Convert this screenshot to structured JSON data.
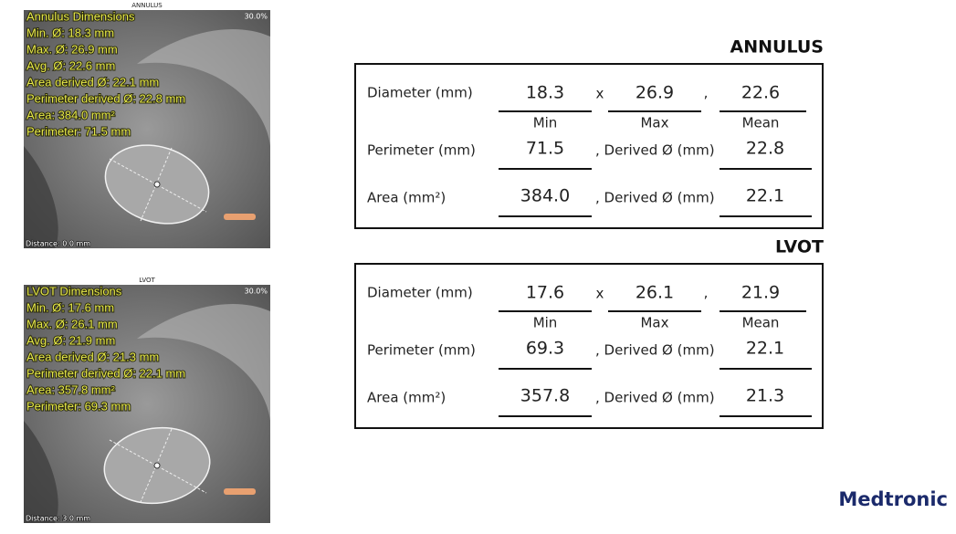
{
  "panels": [
    {
      "caption": "ANNULUS",
      "zoom": "30.0%",
      "lines": [
        "Annulus Dimensions",
        "Min. Ø: 18.3 mm",
        "Max. Ø: 26.9 mm",
        "Avg. Ø: 22.6 mm",
        "Area derived Ø: 22.1 mm",
        "Perimeter derived Ø: 22.8 mm",
        "Area: 384.0 mm²",
        "Perimeter: 71.5 mm"
      ],
      "distance": "Distance: 0.0 mm"
    },
    {
      "caption": "LVOT",
      "zoom": "30.0%",
      "lines": [
        "LVOT Dimensions",
        "Min. Ø: 17.6 mm",
        "Max. Ø: 26.1 mm",
        "Avg. Ø: 21.9 mm",
        "Area derived Ø: 21.3 mm",
        "Perimeter derived Ø: 22.1 mm",
        "Area: 357.8 mm²",
        "Perimeter: 69.3 mm"
      ],
      "distance": "Distance: 3.0 mm"
    }
  ],
  "tables": [
    {
      "title": "ANNULUS",
      "diameter": {
        "label": "Diameter (mm)",
        "min": "18.3",
        "times": "x",
        "max": "26.9",
        "comma": ",",
        "mean": "22.6",
        "min_label": "Min",
        "max_label": "Max",
        "mean_label": "Mean"
      },
      "perimeter": {
        "label": "Perimeter (mm)",
        "value": "71.5",
        "derived_label": ", Derived Ø (mm)",
        "derived": "22.8"
      },
      "area": {
        "label": "Area (mm²)",
        "value": "384.0",
        "derived_label": ", Derived Ø (mm)",
        "derived": "22.1"
      }
    },
    {
      "title": "LVOT",
      "diameter": {
        "label": "Diameter (mm)",
        "min": "17.6",
        "times": "x",
        "max": "26.1",
        "comma": ",",
        "mean": "21.9",
        "min_label": "Min",
        "max_label": "Max",
        "mean_label": "Mean"
      },
      "perimeter": {
        "label": "Perimeter (mm)",
        "value": "69.3",
        "derived_label": ", Derived Ø (mm)",
        "derived": "22.1"
      },
      "area": {
        "label": "Area (mm²)",
        "value": "357.8",
        "derived_label": ", Derived Ø (mm)",
        "derived": "21.3"
      }
    }
  ],
  "brand": "Medtronic"
}
